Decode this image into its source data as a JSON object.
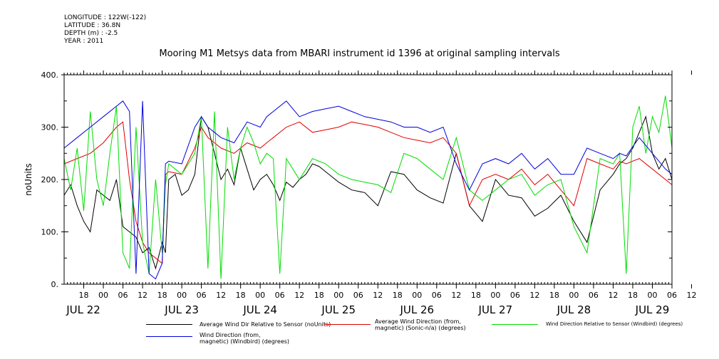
{
  "meta": {
    "longitude": "LONGITUDE : 122W(-122)",
    "latitude": "LATITUDE : 36.8N",
    "depth": "DEPTH (m) : -2.5",
    "year": "YEAR : 2011"
  },
  "chart_data": {
    "type": "line",
    "title": "Mooring M1 Metsys data from MBARI instrument id 1396 at original sampling intervals",
    "ylabel": "noUnits",
    "xlabel": "",
    "ylim": [
      0,
      400
    ],
    "yticks": [
      0,
      100,
      200,
      300,
      400
    ],
    "ytick_labels": [
      "0.",
      "100.",
      "200.",
      "300.",
      "400."
    ],
    "xlim_hours": [
      0,
      186
    ],
    "x_hour_ticks": [
      "18",
      "00",
      "06",
      "12",
      "18",
      "00",
      "06",
      "12",
      "18",
      "00",
      "06",
      "12",
      "18",
      "00",
      "06",
      "12",
      "18",
      "00",
      "06",
      "12",
      "18",
      "00",
      "06",
      "12",
      "18",
      "00",
      "06",
      "12",
      "18",
      "00",
      "06",
      "12"
    ],
    "x_day_labels": [
      "JUL 22",
      "JUL 23",
      "JUL 24",
      "JUL 25",
      "JUL 26",
      "JUL 27",
      "JUL 28",
      "JUL 29"
    ],
    "grid": false,
    "series": [
      {
        "name": "Average Wind Dir Relative to Sensor (noUnits)",
        "color": "#000000",
        "x": [
          0,
          2,
          4,
          6,
          8,
          10,
          12,
          14,
          16,
          18,
          20,
          22,
          24,
          26,
          28,
          30,
          31,
          32,
          34,
          36,
          38,
          40,
          42,
          44,
          46,
          48,
          50,
          52,
          54,
          56,
          58,
          60,
          62,
          64,
          66,
          68,
          70,
          72,
          74,
          76,
          78,
          80,
          84,
          88,
          92,
          96,
          100,
          104,
          108,
          112,
          116,
          120,
          124,
          128,
          132,
          136,
          140,
          144,
          148,
          152,
          156,
          160,
          164,
          168,
          170,
          172,
          174,
          176,
          178,
          180,
          182,
          184,
          186
        ],
        "values": [
          170,
          190,
          150,
          120,
          100,
          180,
          170,
          160,
          200,
          110,
          100,
          90,
          60,
          70,
          30,
          80,
          60,
          200,
          210,
          170,
          180,
          210,
          320,
          300,
          250,
          200,
          220,
          190,
          260,
          220,
          180,
          200,
          210,
          190,
          160,
          195,
          185,
          200,
          210,
          230,
          225,
          215,
          195,
          180,
          175,
          150,
          215,
          210,
          180,
          165,
          155,
          250,
          150,
          120,
          200,
          170,
          165,
          130,
          145,
          170,
          120,
          80,
          180,
          210,
          230,
          240,
          260,
          290,
          320,
          250,
          220,
          240,
          200
        ],
        "legend": "Average Wind Dir Relative to Sensor (noUnits)"
      },
      {
        "name": "Average Wind Direction (from, magnetic) (Sonic-n/a) (degrees)",
        "color": "#e00000",
        "x": [
          0,
          4,
          8,
          12,
          16,
          18,
          20,
          22,
          24,
          26,
          28,
          30,
          31,
          32,
          36,
          40,
          42,
          44,
          46,
          48,
          52,
          56,
          60,
          62,
          64,
          68,
          72,
          76,
          80,
          84,
          88,
          92,
          96,
          100,
          104,
          108,
          112,
          116,
          120,
          124,
          128,
          132,
          136,
          140,
          144,
          148,
          152,
          156,
          160,
          164,
          168,
          170,
          172,
          176,
          180,
          184,
          186
        ],
        "values": [
          230,
          240,
          250,
          270,
          300,
          310,
          200,
          120,
          80,
          60,
          50,
          40,
          210,
          215,
          210,
          260,
          300,
          280,
          270,
          260,
          250,
          270,
          260,
          270,
          280,
          300,
          310,
          290,
          295,
          300,
          310,
          305,
          300,
          290,
          280,
          275,
          270,
          280,
          250,
          150,
          200,
          210,
          200,
          220,
          190,
          210,
          180,
          150,
          240,
          230,
          220,
          235,
          230,
          240,
          220,
          200,
          190
        ],
        "legend": "Average Wind Direction (from,\nmagnetic) (Sonic-n/a) (degrees)"
      },
      {
        "name": "Wind Direction Relative to Sensor (Windbird) (degrees)",
        "color": "#00dd00",
        "x": [
          0,
          2,
          4,
          6,
          8,
          10,
          12,
          14,
          16,
          18,
          20,
          22,
          24,
          26,
          28,
          30,
          31,
          32,
          34,
          36,
          38,
          40,
          42,
          44,
          46,
          48,
          50,
          52,
          54,
          56,
          58,
          60,
          62,
          64,
          66,
          68,
          70,
          72,
          76,
          80,
          84,
          88,
          92,
          96,
          100,
          104,
          108,
          112,
          116,
          120,
          124,
          128,
          132,
          136,
          140,
          144,
          148,
          152,
          156,
          160,
          164,
          168,
          170,
          172,
          174,
          176,
          178,
          180,
          182,
          184,
          186
        ],
        "values": [
          240,
          180,
          260,
          140,
          330,
          200,
          150,
          250,
          340,
          60,
          30,
          300,
          80,
          20,
          200,
          60,
          190,
          230,
          220,
          210,
          230,
          250,
          320,
          30,
          330,
          10,
          300,
          200,
          260,
          300,
          270,
          230,
          250,
          240,
          20,
          240,
          220,
          200,
          240,
          230,
          210,
          200,
          195,
          190,
          175,
          250,
          240,
          220,
          200,
          280,
          180,
          160,
          180,
          200,
          210,
          170,
          190,
          200,
          110,
          60,
          240,
          230,
          250,
          20,
          300,
          340,
          250,
          320,
          290,
          360,
          260
        ],
        "legend": "Wind Direction Relative to Sensor (Windbird) (degrees)"
      },
      {
        "name": "Wind Direction (from, magnetic) (Windbird) (degrees)",
        "color": "#0000dd",
        "x": [
          0,
          4,
          8,
          12,
          16,
          18,
          20,
          22,
          24,
          26,
          28,
          30,
          31,
          32,
          36,
          40,
          42,
          44,
          46,
          48,
          52,
          56,
          60,
          62,
          64,
          68,
          72,
          76,
          80,
          84,
          88,
          92,
          96,
          100,
          104,
          108,
          112,
          116,
          120,
          124,
          128,
          132,
          136,
          140,
          144,
          148,
          152,
          156,
          160,
          164,
          168,
          170,
          172,
          176,
          180,
          184,
          186
        ],
        "values": [
          260,
          280,
          300,
          320,
          340,
          350,
          330,
          20,
          350,
          20,
          10,
          40,
          230,
          235,
          230,
          300,
          320,
          300,
          290,
          280,
          270,
          310,
          300,
          320,
          330,
          350,
          320,
          330,
          335,
          340,
          330,
          320,
          315,
          310,
          300,
          300,
          290,
          300,
          230,
          180,
          230,
          240,
          230,
          250,
          220,
          240,
          210,
          210,
          260,
          250,
          240,
          250,
          245,
          280,
          250,
          220,
          210
        ],
        "legend": "Wind Direction (from,\nmagnetic) (Windbird) (degrees)"
      }
    ]
  }
}
